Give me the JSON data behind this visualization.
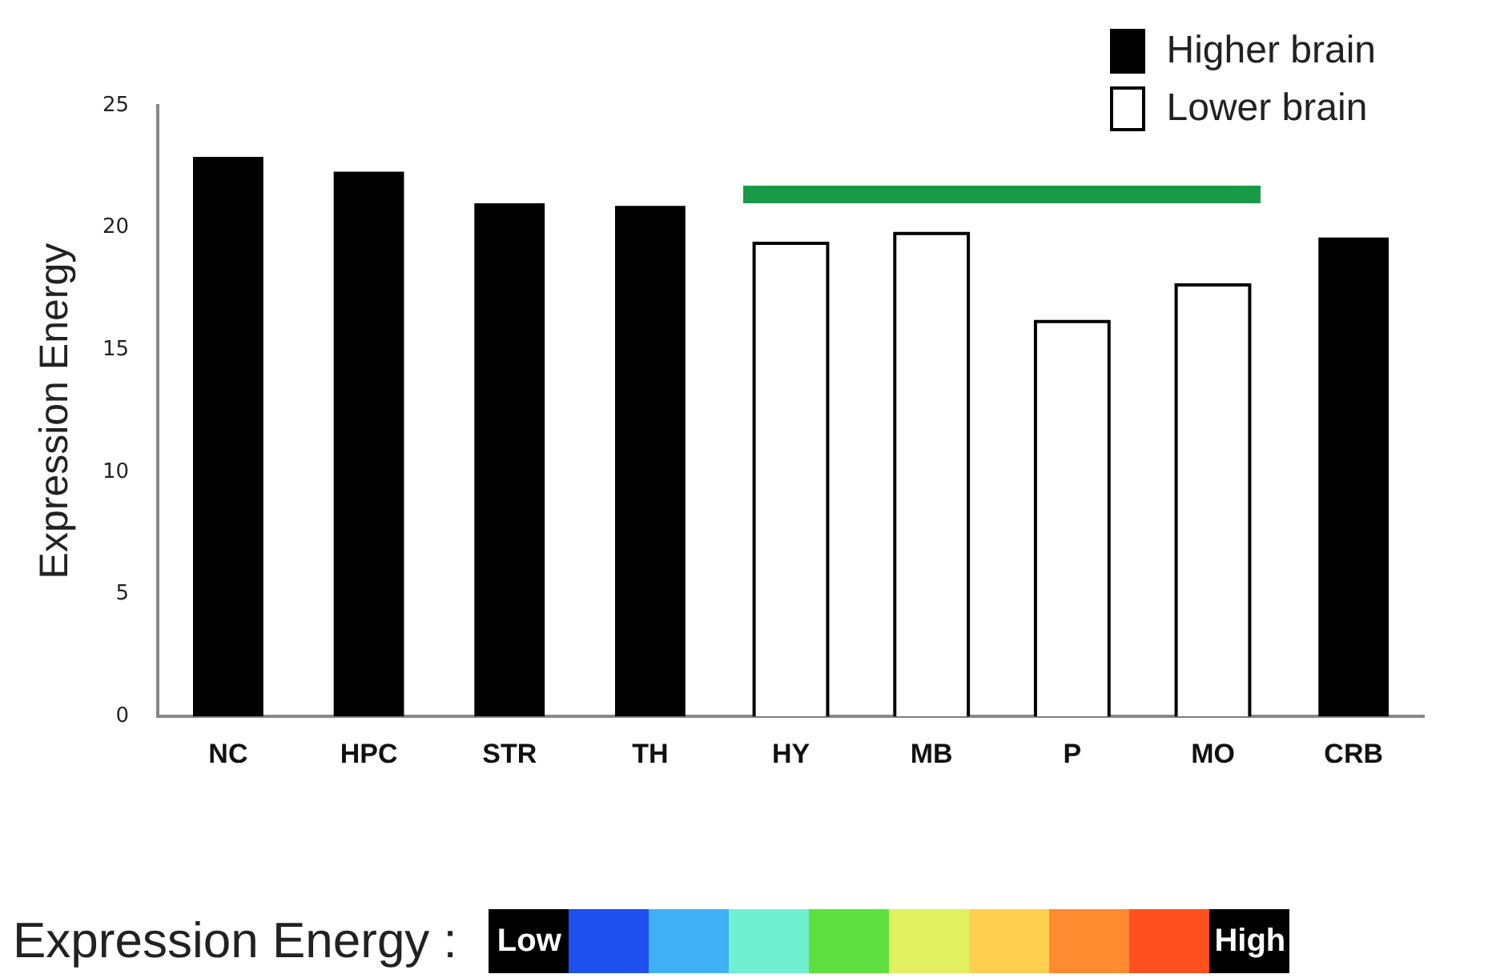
{
  "chart_data": {
    "type": "bar",
    "ylabel": "Expression Energy",
    "categories": [
      "NC",
      "HPC",
      "STR",
      "TH",
      "HY",
      "MB",
      "P",
      "MO",
      "CRB"
    ],
    "series": [
      {
        "name": "Higher brain",
        "color": "#000000",
        "values": [
          22.9,
          22.3,
          21.0,
          20.9,
          null,
          null,
          null,
          null,
          19.6
        ]
      },
      {
        "name": "Lower brain",
        "color": "#ffffff",
        "values": [
          null,
          null,
          null,
          null,
          19.3,
          19.7,
          16.1,
          17.6,
          null
        ]
      }
    ],
    "ylim": [
      0,
      25
    ],
    "yticks": [
      0,
      5,
      10,
      15,
      20,
      25
    ],
    "grid": false,
    "legend": "top right",
    "annotations": [
      "Expression Energy :",
      "Low",
      "High"
    ]
  }
}
